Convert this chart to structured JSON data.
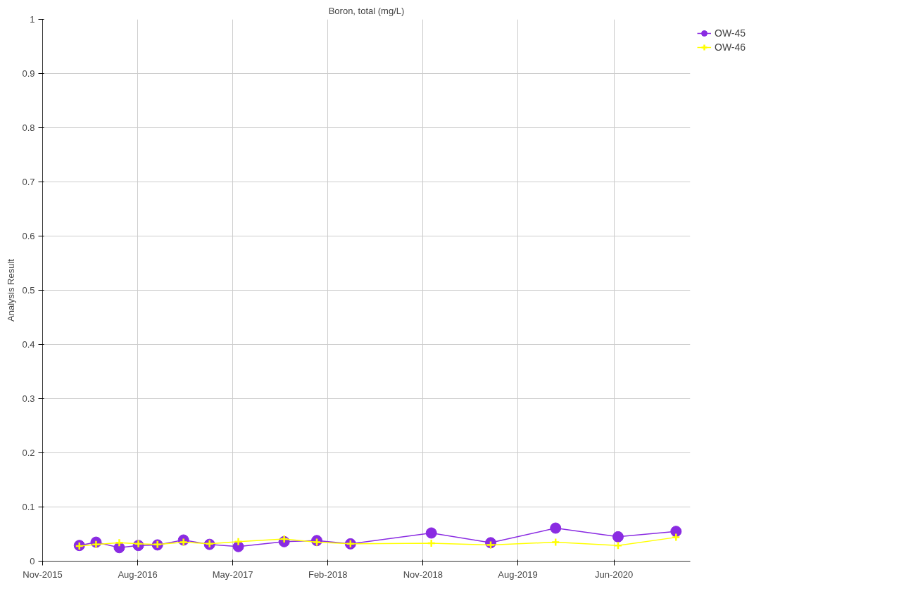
{
  "chart_data": {
    "type": "line",
    "title": "Boron, total (mg/L)",
    "ylabel": "Analysis Result",
    "x": [
      "2016-03-14",
      "2016-05-01",
      "2016-07-07",
      "2016-08-31",
      "2016-10-25",
      "2017-01-08",
      "2017-03-24",
      "2017-06-15",
      "2017-10-25",
      "2018-01-27",
      "2018-05-04",
      "2018-12-23",
      "2019-06-12",
      "2019-12-16",
      "2020-06-13",
      "2020-11-27"
    ],
    "series": [
      {
        "name": "OW-45",
        "color": "#8a2be2",
        "marker": "circle",
        "values": [
          0.029,
          0.035,
          0.025,
          0.029,
          0.03,
          0.039,
          0.031,
          0.027,
          0.036,
          0.038,
          0.032,
          0.052,
          0.034,
          0.061,
          0.045,
          0.055
        ]
      },
      {
        "name": "OW-46",
        "color": "#ffff00",
        "marker": "cross",
        "values": [
          0.028,
          0.031,
          0.034,
          0.032,
          0.031,
          0.035,
          0.032,
          0.036,
          0.041,
          0.035,
          0.032,
          0.033,
          0.03,
          0.035,
          0.029,
          0.044
        ]
      }
    ],
    "xlim": [
      "2015-11-29",
      "2021-01-07"
    ],
    "xticks": [
      {
        "value": "2015-11-29",
        "label": "Nov-2015"
      },
      {
        "value": "2016-08-29",
        "label": "Aug-2016"
      },
      {
        "value": "2017-05-30",
        "label": "May-2017"
      },
      {
        "value": "2018-02-28",
        "label": "Feb-2018"
      },
      {
        "value": "2018-11-29",
        "label": "Nov-2018"
      },
      {
        "value": "2019-08-29",
        "label": "Aug-2019"
      },
      {
        "value": "2020-06-01",
        "label": "Jun-2020"
      }
    ],
    "ylim": [
      0,
      1
    ],
    "yticks": [
      0,
      {
        "value": 0.1,
        "label": "0.1"
      },
      {
        "value": 0.2,
        "label": "0.2"
      },
      {
        "value": 0.3,
        "label": "0.3"
      },
      {
        "value": 0.4,
        "label": "0.4"
      },
      {
        "value": 0.5,
        "label": "0.5"
      },
      {
        "value": 0.6,
        "label": "0.6"
      },
      {
        "value": 0.7,
        "label": "0.7"
      },
      {
        "value": 0.8,
        "label": "0.8"
      },
      {
        "value": 0.9,
        "label": "0.9"
      },
      1
    ],
    "grid": true,
    "legend": "top right",
    "line_style": "solid"
  }
}
